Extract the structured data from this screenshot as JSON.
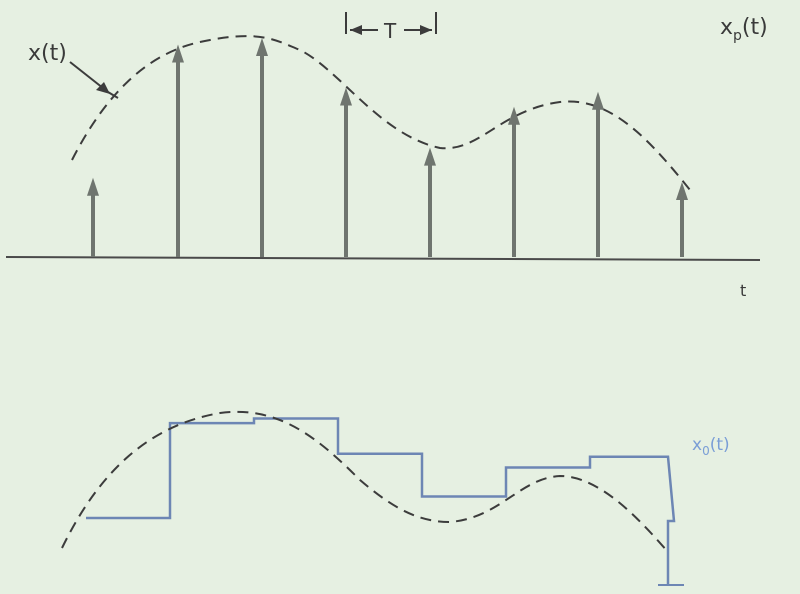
{
  "labels": {
    "x_t": "x(t)",
    "xp_t": "x",
    "xp_sub": "p",
    "xp_arg": "(t)",
    "t_axis": "t",
    "period": "T",
    "x0_t": "x",
    "x0_sub": "0",
    "x0_arg": "(t)"
  },
  "colors": {
    "background": "#e6f0e2",
    "ink": "#3c3c3c",
    "impulse": "#6f756f",
    "hold": "#6d86b4",
    "hold_label": "#7a9ed6"
  },
  "samples": [
    {
      "n": 0,
      "value": 0.35
    },
    {
      "n": 1,
      "value": 0.97
    },
    {
      "n": 2,
      "value": 1.0
    },
    {
      "n": 3,
      "value": 0.77
    },
    {
      "n": 4,
      "value": 0.49
    },
    {
      "n": 5,
      "value": 0.68
    },
    {
      "n": 6,
      "value": 0.75
    },
    {
      "n": 7,
      "value": 0.33
    }
  ]
}
